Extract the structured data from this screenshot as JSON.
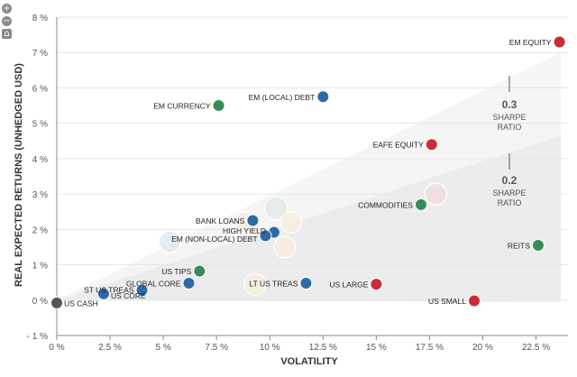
{
  "toolbar": [
    {
      "name": "zoom-in-button",
      "glyph": "+"
    },
    {
      "name": "zoom-out-button",
      "glyph": "−"
    },
    {
      "name": "home-button",
      "glyph": "⌂"
    }
  ],
  "chart_data": {
    "type": "scatter",
    "xlabel": "VOLATILITY",
    "ylabel": "REAL EXPECTED RETURNS (UNHEDGED USD)",
    "xlim": [
      0,
      24
    ],
    "ylim": [
      -1,
      8
    ],
    "x_ticks": [
      {
        "v": 0,
        "label": "0 %"
      },
      {
        "v": 2.5,
        "label": "2.5 %"
      },
      {
        "v": 5,
        "label": "5 %"
      },
      {
        "v": 7.5,
        "label": "7.5 %"
      },
      {
        "v": 10,
        "label": "10 %"
      },
      {
        "v": 12.5,
        "label": "12.5 %"
      },
      {
        "v": 15,
        "label": "15 %"
      },
      {
        "v": 17.5,
        "label": "17.5 %"
      },
      {
        "v": 20,
        "label": "20 %"
      },
      {
        "v": 22.5,
        "label": "22.5 %"
      }
    ],
    "y_ticks": [
      {
        "v": -1,
        "label": "- 1 %"
      },
      {
        "v": 0,
        "label": "0 %"
      },
      {
        "v": 1,
        "label": "1 %"
      },
      {
        "v": 2,
        "label": "2 %"
      },
      {
        "v": 3,
        "label": "3 %"
      },
      {
        "v": 4,
        "label": "4 %"
      },
      {
        "v": 5,
        "label": "5 %"
      },
      {
        "v": 6,
        "label": "6 %"
      },
      {
        "v": 7,
        "label": "7 %"
      },
      {
        "v": 8,
        "label": "8 %"
      }
    ],
    "colors": {
      "red": "#cc2b36",
      "blue": "#2f6aa8",
      "green": "#3a8a5b",
      "gray": "#555555"
    },
    "points": [
      {
        "label": "EM EQUITY",
        "x": 23.6,
        "y": 7.3,
        "color": "red"
      },
      {
        "label": "EM (LOCAL) DEBT",
        "x": 12.5,
        "y": 5.75,
        "color": "blue"
      },
      {
        "label": "EM CURRENCY",
        "x": 7.6,
        "y": 5.5,
        "color": "green"
      },
      {
        "label": "EAFE EQUITY",
        "x": 17.6,
        "y": 4.4,
        "color": "red"
      },
      {
        "label": "COMMODITIES",
        "x": 17.1,
        "y": 2.7,
        "color": "green"
      },
      {
        "label": "BANK LOANS",
        "x": 9.2,
        "y": 2.25,
        "color": "blue"
      },
      {
        "label": "HIGH YIELD",
        "x": 10.2,
        "y": 1.92,
        "color": "blue"
      },
      {
        "label": "EM (NON-LOCAL) DEBT",
        "x": 9.8,
        "y": 1.82,
        "color": "blue"
      },
      {
        "label": "REITS",
        "x": 22.6,
        "y": 1.55,
        "color": "green"
      },
      {
        "label": "US TIPS",
        "x": 6.7,
        "y": 0.82,
        "color": "green"
      },
      {
        "label": "GLOBAL CORE",
        "x": 6.2,
        "y": 0.48,
        "color": "blue"
      },
      {
        "label": "LT US TREAS",
        "x": 11.7,
        "y": 0.48,
        "color": "blue"
      },
      {
        "label": "US LARGE",
        "x": 15.0,
        "y": 0.45,
        "color": "red"
      },
      {
        "label": "ST US TREAS",
        "x": 4.0,
        "y": 0.28,
        "color": "blue"
      },
      {
        "label": "US CORE",
        "x": 2.2,
        "y": 0.18,
        "color": "blue"
      },
      {
        "label": "US SMALL",
        "x": 19.6,
        "y": -0.02,
        "color": "red"
      },
      {
        "label": "US CASH",
        "x": 0.0,
        "y": -0.08,
        "color": "gray"
      }
    ],
    "ghost_bubbles": [
      {
        "x": 10.3,
        "y": 2.6,
        "r": 3.2,
        "color": "#e4ece8"
      },
      {
        "x": 17.8,
        "y": 3.0,
        "r": 3.0,
        "color": "#f4dcdc"
      },
      {
        "x": 5.3,
        "y": 1.65,
        "r": 3.0,
        "color": "#e1e9f0"
      },
      {
        "x": 11.0,
        "y": 2.2,
        "r": 3.0,
        "color": "#f7efe0"
      },
      {
        "x": 8.8,
        "y": 2.2,
        "r": 3.0,
        "color": "#f7efe0"
      },
      {
        "x": 10.7,
        "y": 1.5,
        "r": 3.0,
        "color": "#f7efe0"
      },
      {
        "x": 9.3,
        "y": 0.45,
        "r": 3.0,
        "color": "#f7efe0"
      }
    ],
    "sharpe_lines": [
      {
        "ratio": "0.3",
        "label_lines": [
          "SHARPE",
          "RATIO"
        ]
      },
      {
        "ratio": "0.2",
        "label_lines": [
          "SHARPE",
          "RATIO"
        ]
      }
    ]
  }
}
